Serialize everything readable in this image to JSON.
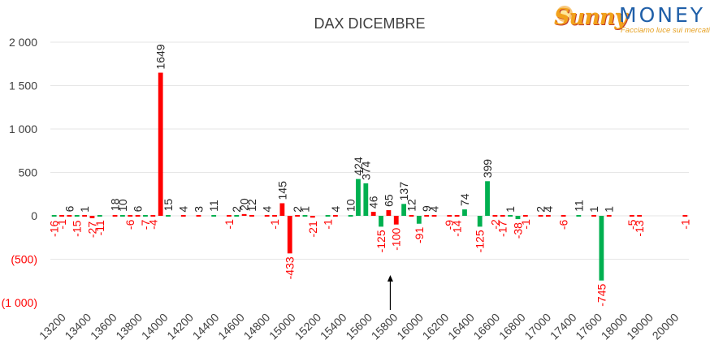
{
  "chart_data": {
    "type": "bar",
    "title": "DAX DICEMBRE",
    "ylim": [
      -1000,
      2000
    ],
    "y_ticks": [
      2000,
      1500,
      1000,
      500,
      0,
      -500,
      -1000
    ],
    "y_tick_labels": [
      "2 000",
      "1 500",
      "1 000",
      "500",
      "0",
      "(500)",
      "(1 000)"
    ],
    "x_tick_labels": [
      "13200",
      "13400",
      "13600",
      "13800",
      "14000",
      "14200",
      "14400",
      "14600",
      "14800",
      "15000",
      "15200",
      "15400",
      "15600",
      "15800",
      "16000",
      "16200",
      "16400",
      "16600",
      "16800",
      "17000",
      "17400",
      "17600",
      "18000",
      "19000",
      "20000"
    ],
    "grid": true,
    "legend": "none",
    "marker_annotation": "upward arrow at 15800",
    "colors": {
      "positive": "#00b050",
      "negative": "#ff0000",
      "grid": "#e6e6e6",
      "text": "#404040"
    },
    "series": [
      {
        "values": [
          -16,
          -1,
          6,
          -15,
          1,
          -27,
          -11,
          null,
          18,
          10,
          -6,
          6,
          -7,
          -4,
          1649,
          15,
          null,
          4,
          null,
          3,
          null,
          11,
          null,
          -1,
          2,
          20,
          12,
          null,
          4,
          -1,
          145,
          -433,
          2,
          1,
          -21,
          null,
          -1,
          4,
          null,
          10,
          424,
          374,
          46,
          -125,
          65,
          -100,
          137,
          12,
          -91,
          9,
          4,
          null,
          -9,
          -14,
          74,
          null,
          -125,
          399,
          -2,
          -17,
          1,
          -38,
          -1,
          null,
          2,
          4,
          null,
          -6,
          null,
          11,
          null,
          1,
          -745,
          1,
          null,
          null,
          -5,
          -13,
          null,
          null,
          null,
          null,
          null,
          -1
        ]
      }
    ]
  }
}
